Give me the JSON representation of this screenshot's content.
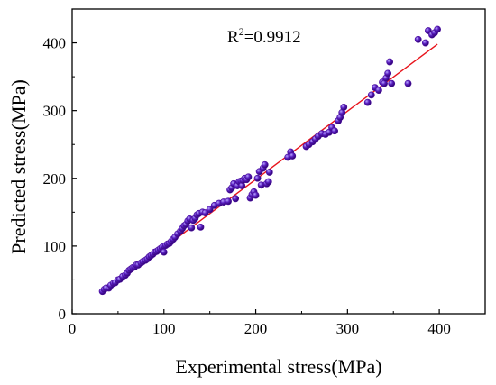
{
  "chart_data": {
    "type": "scatter",
    "xlabel": "Experimental stress(MPa)",
    "ylabel": "Predicted stress(MPa)",
    "xlim": [
      0,
      450
    ],
    "ylim": [
      0,
      450
    ],
    "xticks": [
      "0",
      "100",
      "200",
      "300",
      "400"
    ],
    "yticks": [
      "0",
      "100",
      "200",
      "300",
      "400"
    ],
    "annotation": {
      "prefix": "R",
      "sup": "2",
      "value": "=0.9912"
    },
    "point_color": "#4b0f9e",
    "fit_line_color": "#e8141c",
    "fit_line": {
      "x": [
        33,
        398
      ],
      "y": [
        30,
        398
      ]
    },
    "series": [
      {
        "x": [
          33,
          35,
          37,
          40,
          42,
          45,
          47,
          50,
          52,
          55,
          58,
          60,
          62,
          64,
          66,
          68,
          70,
          72,
          75,
          77,
          80,
          82,
          84,
          86,
          88,
          90,
          92,
          94,
          96,
          98,
          100,
          100,
          102,
          104,
          106,
          108,
          110,
          112,
          115,
          118,
          120,
          122,
          124,
          126,
          128,
          130,
          132,
          134,
          136,
          138,
          140,
          142,
          145,
          150,
          155,
          160,
          165,
          170,
          172,
          174,
          176,
          178,
          180,
          182,
          184,
          185,
          186,
          188,
          190,
          192,
          194,
          196,
          198,
          200,
          202,
          204,
          206,
          208,
          210,
          212,
          214,
          215,
          235,
          238,
          240,
          255,
          258,
          262,
          265,
          268,
          272,
          276,
          280,
          283,
          286,
          290,
          292,
          294,
          296,
          322,
          326,
          330,
          334,
          338,
          340,
          342,
          344,
          346,
          348,
          366,
          377,
          385,
          388,
          392,
          395,
          398
        ],
        "y": [
          33,
          36,
          38,
          38,
          42,
          45,
          46,
          50,
          51,
          55,
          57,
          60,
          64,
          66,
          68,
          69,
          72,
          72,
          75,
          77,
          79,
          81,
          84,
          86,
          88,
          91,
          92,
          94,
          96,
          98,
          100,
          91,
          101,
          103,
          104,
          107,
          110,
          113,
          118,
          122,
          126,
          130,
          132,
          137,
          140,
          127,
          138,
          141,
          146,
          148,
          128,
          150,
          149,
          154,
          160,
          163,
          165,
          166,
          183,
          186,
          192,
          170,
          189,
          195,
          196,
          189,
          197,
          200,
          198,
          202,
          171,
          176,
          180,
          175,
          200,
          210,
          190,
          215,
          220,
          192,
          195,
          209,
          231,
          239,
          233,
          247,
          250,
          254,
          258,
          262,
          266,
          265,
          268,
          275,
          270,
          285,
          290,
          297,
          305,
          312,
          323,
          334,
          330,
          342,
          340,
          348,
          355,
          372,
          340,
          340,
          405,
          400,
          418,
          412,
          415,
          420
        ]
      }
    ]
  }
}
